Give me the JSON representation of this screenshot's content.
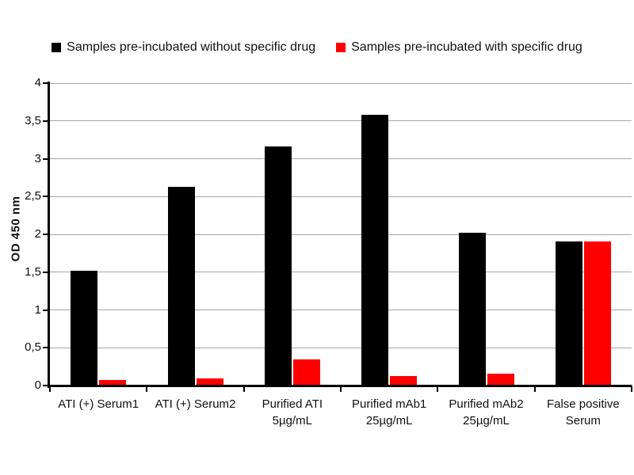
{
  "chart_data": {
    "type": "bar",
    "title": "",
    "xlabel": "",
    "ylabel": "OD 450 nm",
    "ylim": [
      0,
      4
    ],
    "ytick_step": 0.5,
    "ytick_labels": [
      "0",
      "0,5",
      "1",
      "1,5",
      "2",
      "2,5",
      "3",
      "3,5",
      "4"
    ],
    "decimal_separator": ",",
    "grid": true,
    "grid_color": "#a6a6a6",
    "axis_color": "#000000",
    "text_color": "#111111",
    "background_color": "#ffffff",
    "legend_position": "top",
    "categories": [
      "ATI (+) Serum1",
      "ATI (+) Serum2",
      "Purified ATI\n5µg/mL",
      "Purified mAb1\n25µg/mL",
      "Purified mAb2\n25µg/mL",
      "False positive\nSerum"
    ],
    "series": [
      {
        "name": "Samples pre-incubated without specific drug",
        "color": "#000000",
        "values": [
          1.52,
          2.63,
          3.16,
          3.58,
          2.02,
          1.91
        ]
      },
      {
        "name": "Samples pre-incubated with specific drug",
        "color": "#ff0000",
        "values": [
          0.07,
          0.09,
          0.35,
          0.13,
          0.16,
          1.91
        ]
      }
    ]
  }
}
